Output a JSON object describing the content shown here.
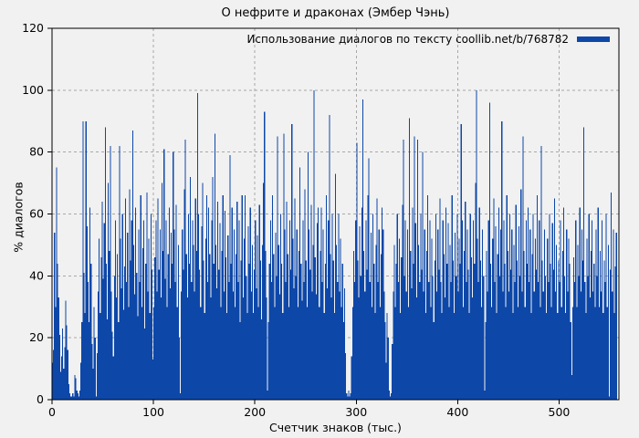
{
  "figure": {
    "title": "О нефрите и драконах (Эмбер Чэнь)"
  },
  "legend": {
    "label": "Использование диалогов по тексту coollib.net/b/768782",
    "position": "top-right-inside"
  },
  "axes": {
    "x_label": "Счетчик знаков (тыс.)",
    "y_label": "% диалогов",
    "x_ticks": [
      0,
      100,
      200,
      300,
      400,
      500
    ],
    "y_ticks": [
      0,
      20,
      40,
      60,
      80,
      100,
      120
    ]
  },
  "colors": {
    "background": "#f1f1f1",
    "bar": "#0d47a8",
    "grid": "#a8a8a8",
    "frame": "#000000",
    "text": "#000000"
  },
  "chart_data": {
    "type": "bar",
    "style": "impulses",
    "title": "О нефрите и драконах (Эмбер Чэнь)",
    "xlabel": "Счетчик знаков (тыс.)",
    "ylabel": "% диалогов",
    "xlim": [
      0,
      559
    ],
    "ylim": [
      0,
      120
    ],
    "grid": true,
    "legend_position": "top-right inside",
    "x_step": 1,
    "series": [
      {
        "name": "Использование диалогов по тексту coollib.net/b/768782",
        "color": "#0d47a8",
        "values": [
          12,
          16,
          54,
          30,
          75,
          44,
          33,
          21,
          9,
          14,
          23,
          10,
          17,
          32,
          24,
          16,
          5,
          2,
          1,
          1,
          2,
          1,
          8,
          7,
          3,
          2,
          1,
          3,
          12,
          25,
          90,
          41,
          28,
          90,
          56,
          38,
          25,
          62,
          44,
          18,
          10,
          30,
          20,
          1,
          15,
          35,
          52,
          28,
          46,
          64,
          39,
          57,
          88,
          44,
          26,
          70,
          48,
          82,
          35,
          22,
          14,
          40,
          58,
          33,
          47,
          25,
          82,
          52,
          36,
          60,
          29,
          43,
          65,
          38,
          54,
          30,
          68,
          45,
          58,
          87,
          50,
          34,
          62,
          41,
          27,
          55,
          38,
          66,
          30,
          49,
          58,
          23,
          44,
          67,
          35,
          52,
          28,
          60,
          42,
          13,
          30,
          46,
          58,
          35,
          65,
          42,
          55,
          33,
          70,
          48,
          81,
          39,
          58,
          30,
          47,
          62,
          36,
          54,
          44,
          80,
          55,
          38,
          63,
          30,
          50,
          20,
          2,
          35,
          55,
          42,
          68,
          84,
          47,
          33,
          60,
          44,
          72,
          38,
          58,
          50,
          35,
          65,
          48,
          99,
          60,
          42,
          30,
          56,
          70,
          45,
          28,
          52,
          66,
          38,
          62,
          47,
          33,
          58,
          72,
          44,
          86,
          50,
          36,
          64,
          42,
          57,
          30,
          48,
          66,
          35,
          61,
          46,
          28,
          53,
          38,
          79,
          44,
          62,
          35,
          55,
          30,
          47,
          64,
          38,
          58,
          25,
          45,
          66,
          33,
          52,
          66,
          40,
          28,
          56,
          44,
          62,
          35,
          50,
          28,
          42,
          58,
          36,
          53,
          30,
          63,
          45,
          26,
          50,
          70,
          93,
          48,
          33,
          3,
          25,
          44,
          58,
          38,
          66,
          47,
          30,
          54,
          40,
          85,
          50,
          34,
          60,
          44,
          28,
          86,
          55,
          38,
          64,
          47,
          30,
          58,
          42,
          89,
          52,
          36,
          65,
          40,
          55,
          30,
          48,
          75,
          44,
          32,
          58,
          38,
          68,
          45,
          30,
          80,
          55,
          42,
          63,
          35,
          50,
          100,
          46,
          34,
          57,
          62,
          30,
          48,
          62,
          38,
          55,
          28,
          44,
          66,
          36,
          58,
          92,
          47,
          33,
          60,
          45,
          28,
          73,
          50,
          38,
          60,
          35,
          52,
          30,
          44,
          25,
          36,
          15,
          2,
          1,
          3,
          1,
          2,
          14,
          30,
          48,
          38,
          58,
          83,
          45,
          33,
          56,
          40,
          62,
          97,
          48,
          35,
          58,
          42,
          66,
          78,
          38,
          54,
          30,
          60,
          44,
          28,
          50,
          65,
          38,
          55,
          30,
          47,
          62,
          55,
          35,
          25,
          12,
          28,
          20,
          3,
          1,
          2,
          18,
          35,
          50,
          30,
          44,
          60,
          38,
          52,
          28,
          46,
          63,
          84,
          40,
          58,
          35,
          55,
          30,
          91,
          48,
          36,
          62,
          44,
          85,
          57,
          33,
          84,
          50,
          38,
          60,
          42,
          80,
          35,
          55,
          28,
          48,
          66,
          38,
          58,
          30,
          52,
          40,
          25,
          45,
          60,
          35,
          55,
          42,
          65,
          38,
          28,
          58,
          47,
          33,
          62,
          44,
          57,
          30,
          50,
          38,
          66,
          45,
          28,
          54,
          40,
          60,
          35,
          52,
          44,
          89,
          58,
          30,
          48,
          64,
          38,
          55,
          42,
          28,
          60,
          46,
          33,
          58,
          44,
          70,
          100,
          52,
          38,
          62,
          45,
          30,
          55,
          40,
          3,
          25,
          48,
          35,
          58,
          96,
          44,
          30,
          52,
          65,
          38,
          56,
          28,
          47,
          62,
          40,
          55,
          90,
          35,
          58,
          44,
          30,
          66,
          48,
          35,
          60,
          42,
          55,
          28,
          50,
          38,
          63,
          45,
          30,
          56,
          40,
          68,
          35,
          85,
          48,
          30,
          58,
          44,
          62,
          38,
          55,
          28,
          47,
          60,
          35,
          52,
          42,
          66,
          38,
          58,
          30,
          82,
          45,
          35,
          55,
          40,
          28,
          52,
          38,
          60,
          44,
          30,
          57,
          42,
          65,
          35,
          50,
          28,
          45,
          38,
          58,
          30,
          48,
          62,
          40,
          28,
          55,
          35,
          52,
          44,
          25,
          8,
          30,
          46,
          38,
          58,
          30,
          50,
          40,
          62,
          35,
          55,
          45,
          88,
          38,
          28,
          52,
          40,
          60,
          33,
          48,
          58,
          35,
          44,
          30,
          55,
          40,
          62,
          30,
          48,
          35,
          58,
          28,
          45,
          38,
          60,
          30,
          50,
          1,
          42,
          67,
          35,
          55,
          28,
          43,
          54
        ]
      }
    ]
  }
}
